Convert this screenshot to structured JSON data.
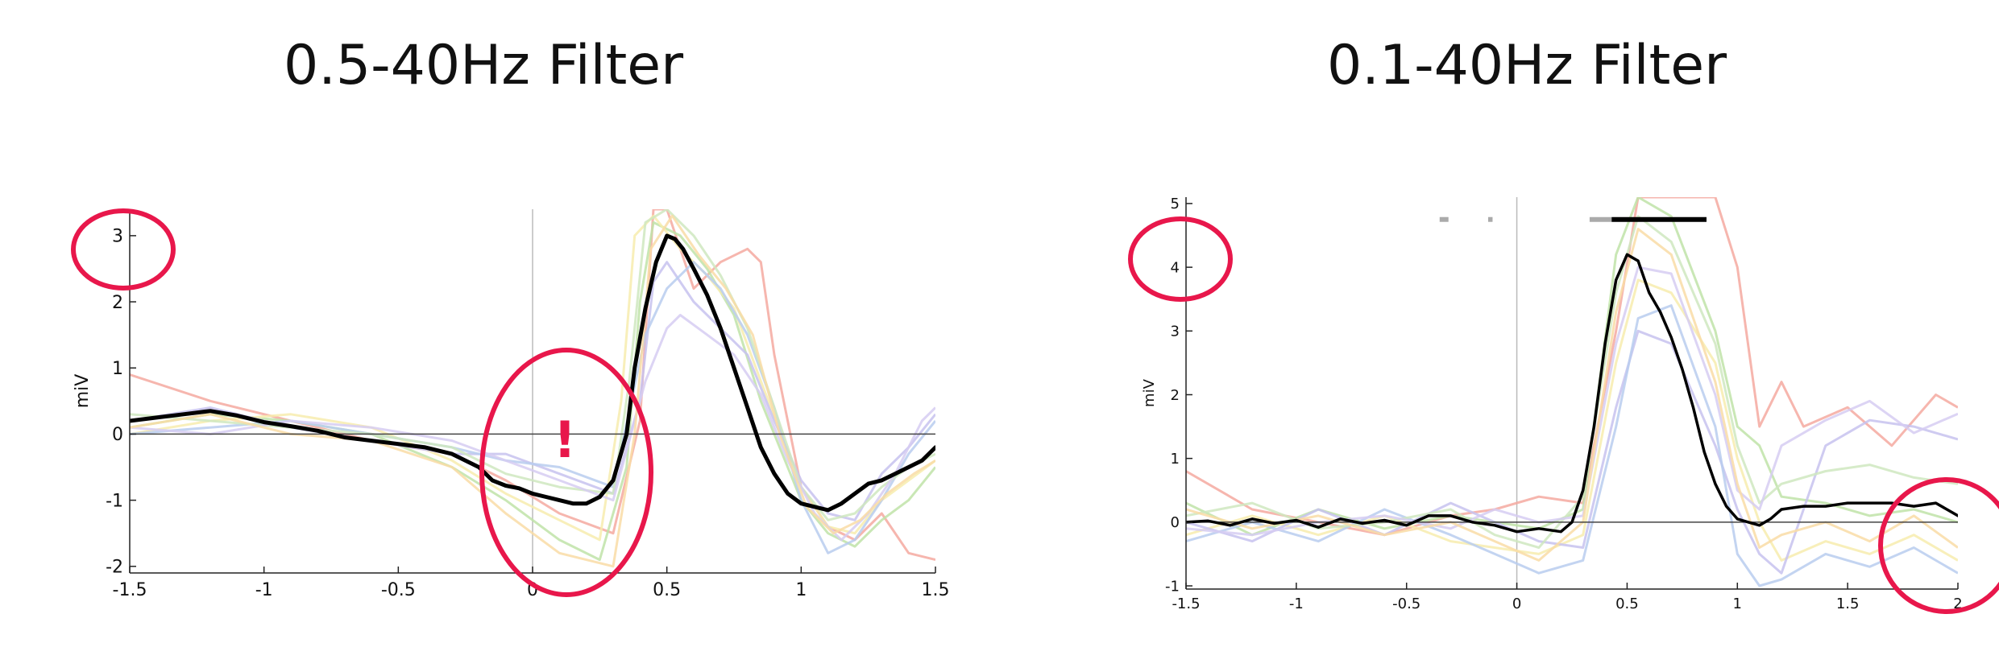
{
  "chart_data": [
    {
      "type": "line",
      "title": "0.5-40Hz Filter",
      "xlabel": "",
      "ylabel": "miV",
      "xlim": [
        -1.5,
        1.5
      ],
      "ylim": [
        -2.1,
        3.4
      ],
      "xticks": [
        -1.5,
        -1,
        -0.5,
        0,
        0.5,
        1,
        1.5
      ],
      "xtick_labels": [
        "-1.5",
        "-1",
        "-0.5",
        "0",
        "0.5",
        "1",
        "1.5"
      ],
      "yticks": [
        -2,
        -1,
        0,
        1,
        2,
        3
      ],
      "ytick_labels": [
        "-2",
        "-1",
        "0",
        "1",
        "2",
        "3"
      ],
      "annotations": [
        "!"
      ],
      "colors": {
        "average": "#000000",
        "highlight": "#e8174b",
        "individual": [
          "#f4a9a0",
          "#bfe3a8",
          "#f7ecae",
          "#c7c2ee",
          "#b8cdef",
          "#cfe8c0",
          "#d6cdf2",
          "#f9dca6"
        ]
      },
      "average_series": {
        "name": "",
        "x": [
          -1.5,
          -1.4,
          -1.3,
          -1.2,
          -1.1,
          -1.0,
          -0.9,
          -0.8,
          -0.7,
          -0.6,
          -0.5,
          -0.4,
          -0.3,
          -0.2,
          -0.15,
          -0.1,
          -0.05,
          0.0,
          0.05,
          0.1,
          0.15,
          0.2,
          0.25,
          0.3,
          0.35,
          0.38,
          0.42,
          0.46,
          0.5,
          0.53,
          0.56,
          0.6,
          0.65,
          0.7,
          0.75,
          0.8,
          0.85,
          0.9,
          0.95,
          1.0,
          1.05,
          1.1,
          1.15,
          1.2,
          1.25,
          1.3,
          1.35,
          1.4,
          1.45,
          1.5
        ],
        "y": [
          0.2,
          0.25,
          0.3,
          0.35,
          0.28,
          0.18,
          0.12,
          0.05,
          -0.05,
          -0.1,
          -0.15,
          -0.2,
          -0.3,
          -0.5,
          -0.7,
          -0.78,
          -0.82,
          -0.9,
          -0.95,
          -1.0,
          -1.05,
          -1.05,
          -0.95,
          -0.7,
          0.0,
          1.0,
          1.9,
          2.6,
          3.0,
          2.95,
          2.8,
          2.5,
          2.1,
          1.6,
          1.0,
          0.4,
          -0.2,
          -0.6,
          -0.9,
          -1.05,
          -1.1,
          -1.15,
          -1.05,
          -0.9,
          -0.75,
          -0.7,
          -0.6,
          -0.5,
          -0.4,
          -0.2
        ]
      },
      "individual_series": [
        {
          "x": [
            -1.5,
            -1.2,
            -0.9,
            -0.6,
            -0.3,
            -0.1,
            0.1,
            0.3,
            0.4,
            0.45,
            0.5,
            0.55,
            0.6,
            0.7,
            0.8,
            0.85,
            0.9,
            1.0,
            1.1,
            1.2,
            1.3,
            1.4,
            1.5
          ],
          "y": [
            0.9,
            0.5,
            0.2,
            -0.1,
            -0.3,
            -0.7,
            -1.2,
            -1.5,
            0.2,
            3.4,
            3.4,
            2.8,
            2.2,
            2.6,
            2.8,
            2.6,
            1.2,
            -0.8,
            -1.4,
            -1.6,
            -1.2,
            -1.8,
            -1.9
          ]
        },
        {
          "x": [
            -1.5,
            -1.2,
            -0.9,
            -0.6,
            -0.3,
            -0.1,
            0.1,
            0.25,
            0.35,
            0.4,
            0.45,
            0.55,
            0.65,
            0.75,
            0.85,
            1.0,
            1.1,
            1.2,
            1.3,
            1.4,
            1.5
          ],
          "y": [
            0.1,
            0.3,
            0.2,
            0.0,
            -0.5,
            -1.0,
            -1.6,
            -1.9,
            -0.5,
            2.0,
            3.2,
            3.0,
            2.5,
            1.8,
            0.5,
            -1.0,
            -1.5,
            -1.7,
            -1.3,
            -1.0,
            -0.5
          ]
        },
        {
          "x": [
            -1.5,
            -1.2,
            -0.9,
            -0.6,
            -0.3,
            -0.1,
            0.1,
            0.25,
            0.33,
            0.38,
            0.45,
            0.55,
            0.65,
            0.75,
            0.85,
            1.0,
            1.1,
            1.2,
            1.3,
            1.4,
            1.5
          ],
          "y": [
            0.0,
            0.2,
            0.3,
            0.1,
            -0.4,
            -0.9,
            -1.3,
            -1.6,
            0.5,
            3.0,
            3.3,
            2.8,
            2.4,
            1.9,
            0.8,
            -0.8,
            -1.4,
            -1.5,
            -1.0,
            -0.7,
            -0.4
          ]
        },
        {
          "x": [
            -1.5,
            -1.2,
            -0.9,
            -0.6,
            -0.3,
            -0.1,
            0.1,
            0.3,
            0.4,
            0.45,
            0.5,
            0.6,
            0.7,
            0.8,
            0.9,
            1.0,
            1.1,
            1.2,
            1.3,
            1.4,
            1.5
          ],
          "y": [
            0.2,
            0.4,
            0.1,
            -0.1,
            -0.3,
            -0.3,
            -0.6,
            -0.9,
            0.5,
            2.3,
            2.6,
            2.0,
            1.6,
            1.2,
            0.2,
            -0.7,
            -1.2,
            -1.3,
            -0.6,
            -0.2,
            0.3
          ]
        },
        {
          "x": [
            -1.5,
            -1.2,
            -0.9,
            -0.6,
            -0.3,
            -0.1,
            0.1,
            0.3,
            0.42,
            0.5,
            0.6,
            0.7,
            0.8,
            0.9,
            1.0,
            1.1,
            1.2,
            1.3,
            1.4,
            1.5
          ],
          "y": [
            0.0,
            0.1,
            0.2,
            0.0,
            -0.2,
            -0.4,
            -0.5,
            -0.8,
            1.5,
            2.2,
            2.6,
            2.2,
            1.5,
            0.4,
            -1.0,
            -1.8,
            -1.6,
            -1.0,
            -0.3,
            0.2
          ]
        },
        {
          "x": [
            -1.5,
            -1.2,
            -0.9,
            -0.6,
            -0.3,
            -0.1,
            0.1,
            0.3,
            0.36,
            0.42,
            0.5,
            0.6,
            0.7,
            0.8,
            0.9,
            1.0,
            1.1,
            1.2,
            1.3,
            1.4,
            1.5
          ],
          "y": [
            0.3,
            0.2,
            0.1,
            0.0,
            -0.2,
            -0.6,
            -0.8,
            -0.9,
            0.8,
            3.2,
            3.4,
            3.0,
            2.4,
            1.6,
            0.4,
            -0.8,
            -1.3,
            -1.2,
            -0.8,
            -0.5,
            -0.3
          ]
        },
        {
          "x": [
            -1.5,
            -1.2,
            -0.9,
            -0.6,
            -0.3,
            -0.1,
            0.1,
            0.3,
            0.42,
            0.5,
            0.55,
            0.65,
            0.75,
            0.85,
            0.95,
            1.05,
            1.15,
            1.25,
            1.35,
            1.45,
            1.5
          ],
          "y": [
            0.1,
            0.0,
            0.2,
            0.1,
            -0.1,
            -0.4,
            -0.7,
            -1.0,
            0.8,
            1.6,
            1.8,
            1.5,
            1.2,
            0.6,
            -0.4,
            -1.2,
            -1.6,
            -1.2,
            -0.6,
            0.2,
            0.4
          ]
        },
        {
          "x": [
            -1.5,
            -1.2,
            -0.9,
            -0.6,
            -0.3,
            -0.1,
            0.1,
            0.3,
            0.38,
            0.44,
            0.52,
            0.62,
            0.72,
            0.82,
            0.92,
            1.02,
            1.12,
            1.22,
            1.32,
            1.42,
            1.5
          ],
          "y": [
            0.1,
            0.3,
            0.0,
            -0.1,
            -0.5,
            -1.2,
            -1.8,
            -2.0,
            0.0,
            2.8,
            3.3,
            2.7,
            2.2,
            1.5,
            0.0,
            -1.1,
            -1.5,
            -1.3,
            -0.9,
            -0.6,
            -0.4
          ]
        }
      ]
    },
    {
      "type": "line",
      "title": "0.1-40Hz Filter",
      "xlabel": "",
      "ylabel": "miV",
      "xlim": [
        -1.5,
        2
      ],
      "ylim": [
        -1.05,
        5.1
      ],
      "xticks": [
        -1.5,
        -1,
        -0.5,
        0,
        0.5,
        1,
        1.5,
        2
      ],
      "xtick_labels": [
        "-1.5",
        "-1",
        "-0.5",
        "0",
        "0.5",
        "1",
        "1.5",
        "2"
      ],
      "yticks": [
        -1,
        0,
        1,
        2,
        3,
        4,
        5
      ],
      "ytick_labels": [
        "-1",
        "0",
        "1",
        "2",
        "3",
        "4",
        "5"
      ],
      "colors": {
        "average": "#000000",
        "highlight": "#e8174b",
        "significance_gray": "#aaaaaa",
        "individual": [
          "#f4a9a0",
          "#bfe3a8",
          "#f7ecae",
          "#c7c2ee",
          "#b8cdef",
          "#cfe8c0",
          "#d6cdf2",
          "#f9dca6"
        ]
      },
      "significance_bars": [
        {
          "x": [
            -0.35,
            -0.31
          ],
          "y": 4.75,
          "color": "gray"
        },
        {
          "x": [
            -0.13,
            -0.11
          ],
          "y": 4.75,
          "color": "gray"
        },
        {
          "x": [
            0.33,
            0.43
          ],
          "y": 4.75,
          "color": "gray"
        },
        {
          "x": [
            0.43,
            0.86
          ],
          "y": 4.75,
          "color": "black"
        }
      ],
      "average_series": {
        "name": "",
        "x": [
          -1.5,
          -1.4,
          -1.3,
          -1.2,
          -1.1,
          -1.0,
          -0.9,
          -0.8,
          -0.7,
          -0.6,
          -0.5,
          -0.4,
          -0.3,
          -0.2,
          -0.1,
          0.0,
          0.1,
          0.2,
          0.25,
          0.3,
          0.35,
          0.4,
          0.45,
          0.5,
          0.55,
          0.6,
          0.65,
          0.7,
          0.75,
          0.8,
          0.85,
          0.9,
          0.95,
          1.0,
          1.05,
          1.1,
          1.15,
          1.2,
          1.3,
          1.4,
          1.5,
          1.6,
          1.7,
          1.8,
          1.9,
          2.0
        ],
        "y": [
          0.0,
          0.02,
          -0.05,
          0.05,
          -0.02,
          0.03,
          -0.08,
          0.05,
          -0.02,
          0.03,
          -0.05,
          0.1,
          0.1,
          0.0,
          -0.05,
          -0.15,
          -0.1,
          -0.15,
          0.0,
          0.5,
          1.5,
          2.8,
          3.8,
          4.2,
          4.1,
          3.6,
          3.3,
          2.9,
          2.4,
          1.8,
          1.1,
          0.6,
          0.25,
          0.05,
          0.0,
          -0.05,
          0.05,
          0.2,
          0.25,
          0.25,
          0.3,
          0.3,
          0.3,
          0.25,
          0.3,
          0.1
        ]
      },
      "individual_series": [
        {
          "x": [
            -1.5,
            -1.2,
            -0.9,
            -0.6,
            -0.3,
            -0.1,
            0.1,
            0.3,
            0.45,
            0.55,
            0.7,
            0.9,
            1.0,
            1.1,
            1.2,
            1.3,
            1.5,
            1.7,
            1.9,
            2.0
          ],
          "y": [
            0.8,
            0.2,
            0.0,
            -0.2,
            0.1,
            0.2,
            0.4,
            0.3,
            3.0,
            5.1,
            5.1,
            5.1,
            4.0,
            1.5,
            2.2,
            1.5,
            1.8,
            1.2,
            2.0,
            1.8
          ]
        },
        {
          "x": [
            -1.5,
            -1.2,
            -0.9,
            -0.6,
            -0.3,
            -0.1,
            0.1,
            0.3,
            0.45,
            0.55,
            0.7,
            0.9,
            1.0,
            1.1,
            1.2,
            1.4,
            1.6,
            1.8,
            2.0
          ],
          "y": [
            0.3,
            -0.2,
            0.2,
            -0.1,
            0.1,
            0.0,
            -0.1,
            0.2,
            4.2,
            5.1,
            4.8,
            3.0,
            1.5,
            1.2,
            0.4,
            0.3,
            0.1,
            0.2,
            0.0
          ]
        },
        {
          "x": [
            -1.5,
            -1.2,
            -0.9,
            -0.6,
            -0.3,
            -0.1,
            0.1,
            0.3,
            0.45,
            0.55,
            0.7,
            0.9,
            1.0,
            1.1,
            1.2,
            1.4,
            1.6,
            1.8,
            2.0
          ],
          "y": [
            -0.2,
            0.1,
            -0.2,
            0.1,
            -0.3,
            -0.4,
            -0.5,
            -0.2,
            2.5,
            3.8,
            3.6,
            2.5,
            1.0,
            0.0,
            -0.6,
            -0.3,
            -0.5,
            -0.2,
            -0.6
          ]
        },
        {
          "x": [
            -1.5,
            -1.2,
            -0.9,
            -0.6,
            -0.3,
            -0.1,
            0.1,
            0.3,
            0.45,
            0.55,
            0.7,
            0.9,
            1.0,
            1.1,
            1.2,
            1.4,
            1.6,
            1.8,
            2.0
          ],
          "y": [
            0.0,
            -0.3,
            0.2,
            -0.2,
            0.3,
            0.0,
            -0.3,
            -0.4,
            1.8,
            3.0,
            2.8,
            1.2,
            0.2,
            -0.5,
            -0.8,
            1.2,
            1.6,
            1.5,
            1.3
          ]
        },
        {
          "x": [
            -1.5,
            -1.2,
            -0.9,
            -0.6,
            -0.3,
            -0.1,
            0.1,
            0.3,
            0.45,
            0.55,
            0.7,
            0.9,
            1.0,
            1.1,
            1.2,
            1.4,
            1.6,
            1.8,
            2.0
          ],
          "y": [
            -0.3,
            0.0,
            -0.3,
            0.2,
            -0.2,
            -0.5,
            -0.8,
            -0.6,
            1.5,
            3.2,
            3.4,
            1.5,
            -0.5,
            -1.0,
            -0.9,
            -0.5,
            -0.7,
            -0.4,
            -0.8
          ]
        },
        {
          "x": [
            -1.5,
            -1.2,
            -0.9,
            -0.6,
            -0.3,
            -0.1,
            0.1,
            0.3,
            0.45,
            0.55,
            0.7,
            0.9,
            1.0,
            1.1,
            1.2,
            1.4,
            1.6,
            1.8,
            2.0
          ],
          "y": [
            0.1,
            0.3,
            -0.1,
            0.0,
            0.2,
            -0.2,
            -0.4,
            0.4,
            3.6,
            4.8,
            4.4,
            2.8,
            1.2,
            0.3,
            0.6,
            0.8,
            0.9,
            0.7,
            0.6
          ]
        },
        {
          "x": [
            -1.5,
            -1.2,
            -0.9,
            -0.6,
            -0.3,
            -0.1,
            0.1,
            0.3,
            0.45,
            0.55,
            0.7,
            0.9,
            1.0,
            1.1,
            1.2,
            1.4,
            1.6,
            1.8,
            2.0
          ],
          "y": [
            -0.1,
            -0.2,
            0.0,
            0.1,
            -0.1,
            0.2,
            0.0,
            0.1,
            2.8,
            4.0,
            3.9,
            2.0,
            0.5,
            0.2,
            1.2,
            1.6,
            1.9,
            1.4,
            1.7
          ]
        },
        {
          "x": [
            -1.5,
            -1.2,
            -0.9,
            -0.6,
            -0.3,
            -0.1,
            0.1,
            0.3,
            0.45,
            0.55,
            0.7,
            0.9,
            1.0,
            1.1,
            1.2,
            1.4,
            1.6,
            1.8,
            2.0
          ],
          "y": [
            0.2,
            -0.1,
            0.1,
            -0.2,
            0.0,
            -0.3,
            -0.6,
            0.0,
            3.3,
            4.6,
            4.2,
            2.2,
            0.6,
            -0.4,
            -0.2,
            0.0,
            -0.3,
            0.1,
            -0.4
          ]
        }
      ]
    }
  ]
}
